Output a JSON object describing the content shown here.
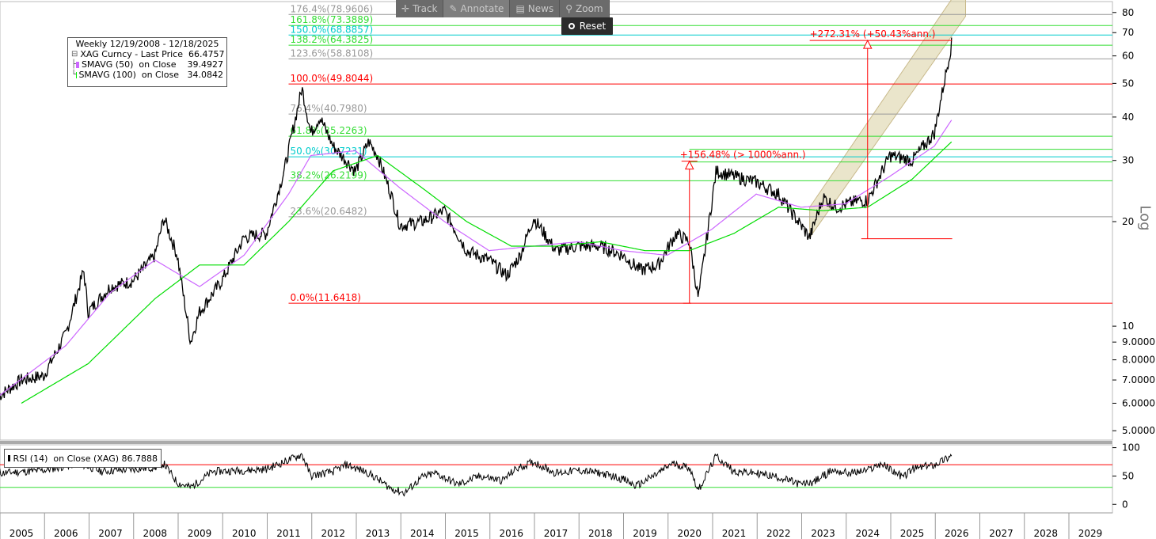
{
  "toolbar": {
    "track": "Track",
    "annotate": "Annotate",
    "news": "News",
    "zoom": "Zoom",
    "reset": "Reset"
  },
  "legend": {
    "title": "Weekly 12/19/2008 - 12/18/2025",
    "rows": [
      {
        "text": "XAG Curncy - Last Price  66.4757",
        "color": "#000000"
      },
      {
        "text": "SMAVG (50)  on Close    39.4927",
        "color": "#cc66ff"
      },
      {
        "text": "SMAVG (100)  on Close   34.0842",
        "color": "#00ee00"
      }
    ]
  },
  "rsi_legend": {
    "text": "RSI (14)  on Close (XAG) 86.7888",
    "color": "#000000"
  },
  "log_label": "Log",
  "colors": {
    "price": "#000000",
    "sma50": "#cc66ff",
    "sma100": "#00dd00",
    "fib_red": "#ff0000",
    "fib_green": "#33dd33",
    "fib_cyan": "#00cccc",
    "fib_gray": "#999999",
    "channel": "#d8cfa0",
    "annotation": "#ff0000",
    "grid": "#cccccc"
  },
  "chart_data": [
    {
      "type": "line",
      "scale": "log",
      "x_tick_labels": [
        "2005",
        "2006",
        "2007",
        "2008",
        "2009",
        "2010",
        "2011",
        "2012",
        "2013",
        "2014",
        "2015",
        "2016",
        "2017",
        "2018",
        "2019",
        "2020",
        "2021",
        "2022",
        "2023",
        "2024",
        "2025",
        "2026",
        "2027",
        "2028",
        "2029"
      ],
      "y_tick_labels": [
        "80",
        "70",
        "60",
        "50",
        "40",
        "30",
        "20",
        "10",
        "9.0000",
        "8.0000",
        "7.0000",
        "6.0000",
        "5.0000"
      ],
      "y_tick_values": [
        80,
        70,
        60,
        50,
        40,
        30,
        20,
        10,
        9,
        8,
        7,
        6,
        5
      ],
      "ylim": [
        4.7,
        86
      ],
      "series": [
        {
          "name": "XAG Curncy - Last Price",
          "x": [
            2004.5,
            2005.0,
            2005.5,
            2006.0,
            2006.4,
            2006.5,
            2007.0,
            2007.5,
            2008.0,
            2008.2,
            2008.5,
            2008.8,
            2009.0,
            2009.5,
            2010.0,
            2010.5,
            2010.9,
            2011.3,
            2011.5,
            2011.7,
            2012.0,
            2012.5,
            2012.8,
            2013.0,
            2013.3,
            2013.5,
            2014.0,
            2014.5,
            2015.0,
            2015.5,
            2015.9,
            2016.2,
            2016.5,
            2017.0,
            2017.5,
            2018.0,
            2018.5,
            2018.9,
            2019.3,
            2019.7,
            2020.0,
            2020.2,
            2020.6,
            2021.0,
            2021.5,
            2022.0,
            2022.7,
            2023.0,
            2023.3,
            2023.8,
            2024.0,
            2024.5,
            2025.0,
            2025.5,
            2025.9
          ],
          "values": [
            6.3,
            7.0,
            7.2,
            9.5,
            14.5,
            11.0,
            13.0,
            13.5,
            16.0,
            20.5,
            16.0,
            9.0,
            11.0,
            13.5,
            18.0,
            18.5,
            28.0,
            48.5,
            36.0,
            40.0,
            33.0,
            28.0,
            34.0,
            31.0,
            24.0,
            19.5,
            20.0,
            21.5,
            16.5,
            15.5,
            14.0,
            16.0,
            20.5,
            16.5,
            17.0,
            17.0,
            16.0,
            14.5,
            15.0,
            18.5,
            17.5,
            12.0,
            28.0,
            27.0,
            26.0,
            24.0,
            18.0,
            23.5,
            22.0,
            23.0,
            23.0,
            31.0,
            30.0,
            36.0,
            66.47
          ]
        },
        {
          "name": "SMAVG (50) on Close",
          "x": [
            2004.5,
            2006.0,
            2007.0,
            2008.0,
            2009.0,
            2010.0,
            2011.0,
            2011.5,
            2012.5,
            2013.5,
            2014.5,
            2015.5,
            2016.5,
            2017.5,
            2018.5,
            2019.5,
            2020.5,
            2021.5,
            2022.5,
            2023.5,
            2024.5,
            2025.5,
            2025.9
          ],
          "values": [
            6.3,
            8.8,
            12.5,
            15.5,
            13.0,
            16.0,
            24.0,
            31.0,
            32.0,
            25.0,
            20.0,
            16.5,
            17.0,
            17.5,
            16.5,
            16.0,
            19.0,
            24.0,
            22.0,
            22.5,
            27.0,
            33.0,
            39.49
          ]
        },
        {
          "name": "SMAVG (100) on Close",
          "x": [
            2005.0,
            2006.5,
            2008.0,
            2009.0,
            2010.0,
            2011.0,
            2012.0,
            2013.0,
            2014.0,
            2015.0,
            2016.0,
            2017.0,
            2018.0,
            2019.0,
            2020.0,
            2021.0,
            2022.0,
            2023.0,
            2024.0,
            2025.0,
            2025.9
          ],
          "values": [
            6.0,
            7.8,
            12.0,
            15.0,
            15.0,
            20.0,
            28.0,
            31.0,
            25.0,
            20.0,
            17.0,
            17.0,
            17.5,
            16.5,
            16.5,
            18.5,
            22.0,
            21.5,
            22.0,
            26.5,
            34.08
          ]
        }
      ],
      "fib_levels": [
        {
          "label": "176.4%(78.9606)",
          "value": 78.9606,
          "color": "#999999"
        },
        {
          "label": "161.8%(73.3889)",
          "value": 73.3889,
          "color": "#33dd33"
        },
        {
          "label": "150.0%(68.8857)",
          "value": 68.8857,
          "color": "#00cccc"
        },
        {
          "label": "138.2%(64.3825)",
          "value": 64.3825,
          "color": "#33dd33"
        },
        {
          "label": "123.6%(58.8108)",
          "value": 58.8108,
          "color": "#999999"
        },
        {
          "label": "100.0%(49.8044)",
          "value": 49.8044,
          "color": "#ff0000"
        },
        {
          "label": "76.4%(40.7980)",
          "value": 40.798,
          "color": "#999999"
        },
        {
          "label": "61.8%(35.2263)",
          "value": 35.2263,
          "color": "#33dd33"
        },
        {
          "label": "50.0%(30.7231)",
          "value": 30.7231,
          "color": "#00cccc"
        },
        {
          "label": "38.2%(26.2199)",
          "value": 26.2199,
          "color": "#33dd33"
        },
        {
          "label": "23.6%(20.6482)",
          "value": 20.6482,
          "color": "#999999"
        },
        {
          "label": "0.0%(11.6418)",
          "value": 11.6418,
          "color": "#ff0000"
        }
      ],
      "extra_levels": [
        32.3,
        29.7
      ],
      "annotations": [
        {
          "text": "+156.48% (> 1000%ann.)",
          "x": 2020.0,
          "from": 11.64,
          "to": 29.85
        },
        {
          "text": "+272.31% (+50.43%ann.)",
          "x": 2024.0,
          "from": 17.85,
          "to": 66.47
        }
      ],
      "channel": {
        "x": [
          2022.7,
          2026.2
        ],
        "lower": [
          18.0,
          78.0
        ],
        "upper": [
          22.0,
          100.0
        ]
      }
    },
    {
      "type": "line",
      "name": "RSI (14) on Close (XAG)",
      "y_tick_labels": [
        "100",
        "50",
        "0"
      ],
      "y_tick_values": [
        100,
        50,
        0
      ],
      "ylim": [
        -15,
        105
      ],
      "levels": [
        70,
        30
      ],
      "series": [
        {
          "name": "RSI (14) on Close (XAG)",
          "x": [
            2004.5,
            2005.5,
            2006.3,
            2006.8,
            2007.5,
            2008.0,
            2008.2,
            2008.5,
            2008.8,
            2009.3,
            2010.0,
            2010.5,
            2011.3,
            2011.5,
            2012.0,
            2012.3,
            2012.8,
            2013.3,
            2013.6,
            2014.0,
            2014.3,
            2014.8,
            2015.3,
            2015.8,
            2016.1,
            2016.5,
            2017.0,
            2017.5,
            2018.0,
            2018.5,
            2018.8,
            2019.3,
            2019.6,
            2020.0,
            2020.2,
            2020.6,
            2021.0,
            2021.5,
            2022.0,
            2022.5,
            2022.8,
            2023.2,
            2023.6,
            2024.0,
            2024.3,
            2024.8,
            2025.0,
            2025.5,
            2025.9
          ],
          "values": [
            55,
            60,
            72,
            58,
            62,
            65,
            72,
            38,
            30,
            58,
            60,
            62,
            88,
            50,
            58,
            70,
            55,
            28,
            20,
            48,
            55,
            35,
            50,
            42,
            62,
            75,
            55,
            60,
            55,
            45,
            32,
            55,
            72,
            65,
            25,
            85,
            58,
            55,
            48,
            35,
            40,
            60,
            55,
            60,
            72,
            48,
            62,
            70,
            86.79
          ]
        }
      ]
    }
  ]
}
